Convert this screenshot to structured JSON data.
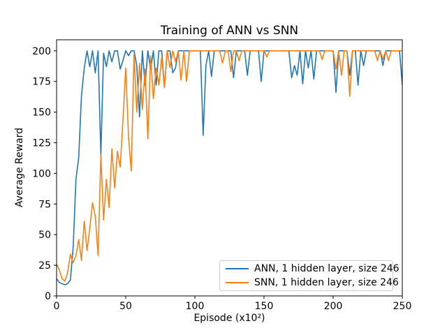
{
  "figure": {
    "background": "#ffffff"
  },
  "chart_data": {
    "type": "line",
    "title": "Training of ANN vs SNN",
    "xlabel": "Episode (x10²)",
    "ylabel": "Average Reward",
    "xlim": [
      0,
      250
    ],
    "ylim": [
      0,
      209
    ],
    "xticks": [
      0,
      50,
      100,
      150,
      200,
      250
    ],
    "yticks": [
      0,
      25,
      50,
      75,
      100,
      125,
      150,
      175,
      200
    ],
    "grid": false,
    "legend_position": "lower right",
    "frame_color": "#000000",
    "x": [
      0,
      2,
      4,
      6,
      8,
      10,
      12,
      14,
      16,
      18,
      20,
      22,
      24,
      26,
      28,
      30,
      32,
      34,
      36,
      38,
      40,
      42,
      44,
      46,
      48,
      50,
      52,
      54,
      56,
      58,
      60,
      62,
      64,
      66,
      68,
      70,
      72,
      74,
      76,
      78,
      80,
      82,
      84,
      86,
      88,
      90,
      92,
      94,
      96,
      98,
      100,
      102,
      104,
      106,
      108,
      110,
      112,
      114,
      116,
      118,
      120,
      122,
      124,
      126,
      128,
      130,
      132,
      134,
      136,
      138,
      140,
      142,
      144,
      146,
      148,
      150,
      152,
      154,
      156,
      158,
      160,
      162,
      164,
      166,
      168,
      170,
      172,
      174,
      176,
      178,
      180,
      182,
      184,
      186,
      188,
      190,
      192,
      194,
      196,
      198,
      200,
      202,
      204,
      206,
      208,
      210,
      212,
      214,
      216,
      218,
      220,
      222,
      224,
      226,
      228,
      230,
      232,
      234,
      236,
      238,
      240,
      242,
      244,
      246,
      248,
      250
    ],
    "series": [
      {
        "name": "ANN, 1 hidden layer, size 246",
        "color": "#1f77b4",
        "values": [
          14,
          11,
          10,
          9,
          10,
          13,
          40,
          95,
          113,
          163,
          186,
          200,
          187,
          200,
          182,
          200,
          115,
          198,
          187,
          200,
          191,
          200,
          200,
          185,
          192,
          200,
          196,
          200,
          200,
          188,
          146,
          200,
          172,
          200,
          185,
          200,
          172,
          200,
          200,
          170,
          200,
          200,
          182,
          186,
          200,
          200,
          200,
          200,
          200,
          200,
          200,
          200,
          200,
          131,
          188,
          200,
          179,
          200,
          200,
          200,
          200,
          200,
          200,
          200,
          178,
          200,
          200,
          200,
          200,
          180,
          200,
          200,
          200,
          200,
          175,
          200,
          200,
          200,
          200,
          200,
          200,
          200,
          200,
          200,
          200,
          178,
          188,
          180,
          200,
          173,
          200,
          186,
          200,
          177,
          200,
          200,
          200,
          200,
          200,
          200,
          200,
          166,
          200,
          200,
          200,
          200,
          180,
          200,
          200,
          172,
          200,
          188,
          200,
          200,
          200,
          200,
          200,
          200,
          188,
          200,
          200,
          200,
          200,
          200,
          200,
          172
        ]
      },
      {
        "name": "SNN, 1 hidden layer, size 246",
        "color": "#ff7f0e",
        "values": [
          26,
          21,
          14,
          12,
          19,
          34,
          27,
          33,
          46,
          29,
          61,
          37,
          55,
          76,
          65,
          33,
          115,
          62,
          95,
          72,
          120,
          88,
          118,
          105,
          143,
          186,
          130,
          102,
          197,
          150,
          190,
          152,
          185,
          128,
          196,
          161,
          186,
          172,
          195,
          170,
          200,
          186,
          200,
          191,
          200,
          176,
          200,
          175,
          200,
          200,
          200,
          200,
          200,
          200,
          200,
          200,
          200,
          200,
          200,
          200,
          190,
          200,
          200,
          183,
          200,
          200,
          192,
          200,
          200,
          200,
          200,
          200,
          200,
          200,
          200,
          200,
          195,
          200,
          200,
          200,
          200,
          200,
          200,
          200,
          200,
          200,
          200,
          200,
          200,
          200,
          200,
          200,
          200,
          200,
          200,
          200,
          193,
          200,
          200,
          200,
          200,
          185,
          200,
          180,
          200,
          200,
          163,
          200,
          200,
          200,
          200,
          200,
          200,
          200,
          200,
          200,
          192,
          200,
          193,
          200,
          192,
          200,
          200,
          200,
          200,
          200
        ]
      }
    ]
  }
}
